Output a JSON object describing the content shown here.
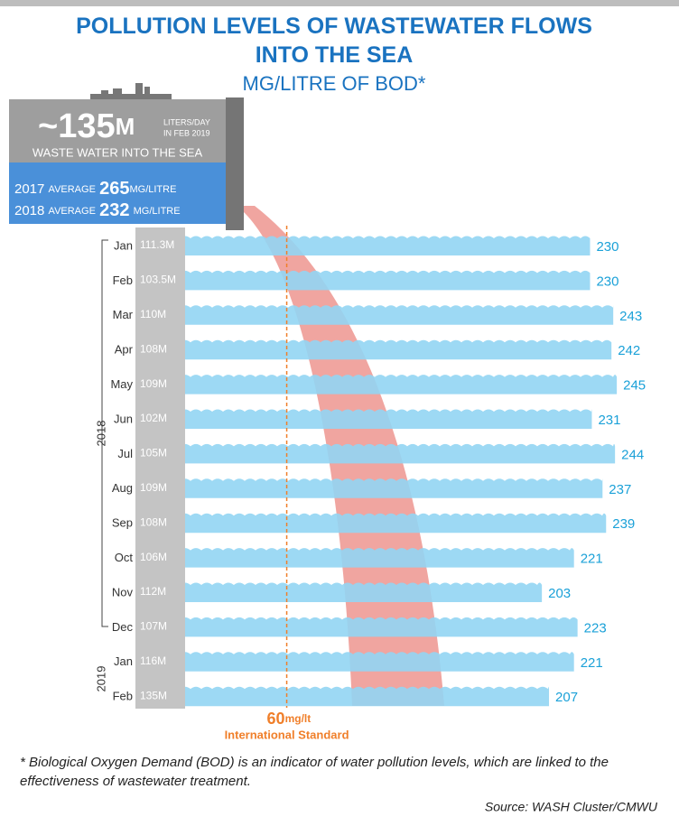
{
  "chart_data": {
    "type": "bar",
    "title": "POLLUTION LEVELS OF WASTEWATER FLOWS INTO THE SEA",
    "subtitle": "MG/LITRE OF BOD*",
    "headline": {
      "value": "~135",
      "unit": "M",
      "unit_note": "LITERS/DAY",
      "date_note": "IN FEB 2019",
      "caption": "WASTE WATER INTO THE SEA"
    },
    "averages": [
      {
        "year": "2017",
        "label": "AVERAGE",
        "value": 265,
        "unit": "MG/LITRE"
      },
      {
        "year": "2018",
        "label": "AVERAGE",
        "value": 232,
        "unit": "MG/LITRE"
      }
    ],
    "year_groups": [
      "2018",
      "2019"
    ],
    "categories": [
      "Jan",
      "Feb",
      "Mar",
      "Apr",
      "May",
      "Jun",
      "Jul",
      "Aug",
      "Sep",
      "Oct",
      "Nov",
      "Dec",
      "Jan",
      "Feb"
    ],
    "flows": [
      111.3,
      103.5,
      110,
      108,
      109,
      102,
      105,
      109,
      108,
      106,
      112,
      107,
      116,
      135
    ],
    "flow_labels": [
      "111.3M",
      "103.5M",
      "110M",
      "108M",
      "109M",
      "102M",
      "105M",
      "109M",
      "108M",
      "106M",
      "112M",
      "107M",
      "116M",
      "135M"
    ],
    "values": [
      230,
      230,
      243,
      242,
      245,
      231,
      244,
      237,
      239,
      221,
      203,
      223,
      221,
      207
    ],
    "color": "#92d5f3",
    "label_color": "#1ba1d8",
    "xlim": [
      0,
      250
    ],
    "standard": {
      "value": 60,
      "unit": "mg/lt",
      "label": "International Standard",
      "color": "#f07f2a"
    },
    "footnote": "* Biological Oxygen Demand (BOD) is an indicator of water pollution levels, which are linked to the effectiveness of wastewater treatment.",
    "source": "Source: WASH Cluster/CMWU"
  }
}
